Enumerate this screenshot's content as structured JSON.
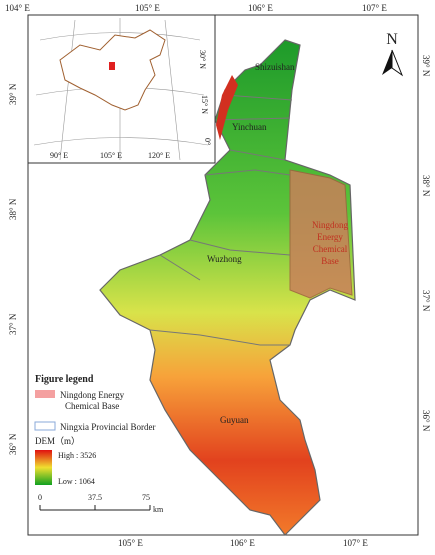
{
  "graticule": {
    "top": [
      "104° E",
      "105° E",
      "106° E",
      "107° E"
    ],
    "bottom": [
      "105° E",
      "106° E",
      "107° E"
    ],
    "left": [
      "39° N",
      "38° N",
      "37° N",
      "36° N"
    ],
    "right": [
      "39° N",
      "38° N",
      "37° N",
      "36° N"
    ]
  },
  "inset": {
    "lat_labels": [
      "30° N",
      "15° N",
      "0°"
    ],
    "lon_labels": [
      "90° E",
      "105° E",
      "120° E"
    ]
  },
  "places": [
    "Shizuishan",
    "Yinchuan",
    "Wuzhong",
    "Guyuan"
  ],
  "ningdong_label": [
    "Ningdong",
    "Energy",
    "Chemical",
    "Base"
  ],
  "north": "N",
  "legend": {
    "title": "Figure legend",
    "base": [
      "Ningdong Energy",
      "Chemical Base"
    ],
    "border": "Ningxia Provincial Border",
    "dem": "DEM（m）",
    "high": "High : 3526",
    "low": "Low : 1064"
  },
  "scale": {
    "labels": [
      "0",
      "37.5",
      "75"
    ],
    "unit": "km"
  }
}
